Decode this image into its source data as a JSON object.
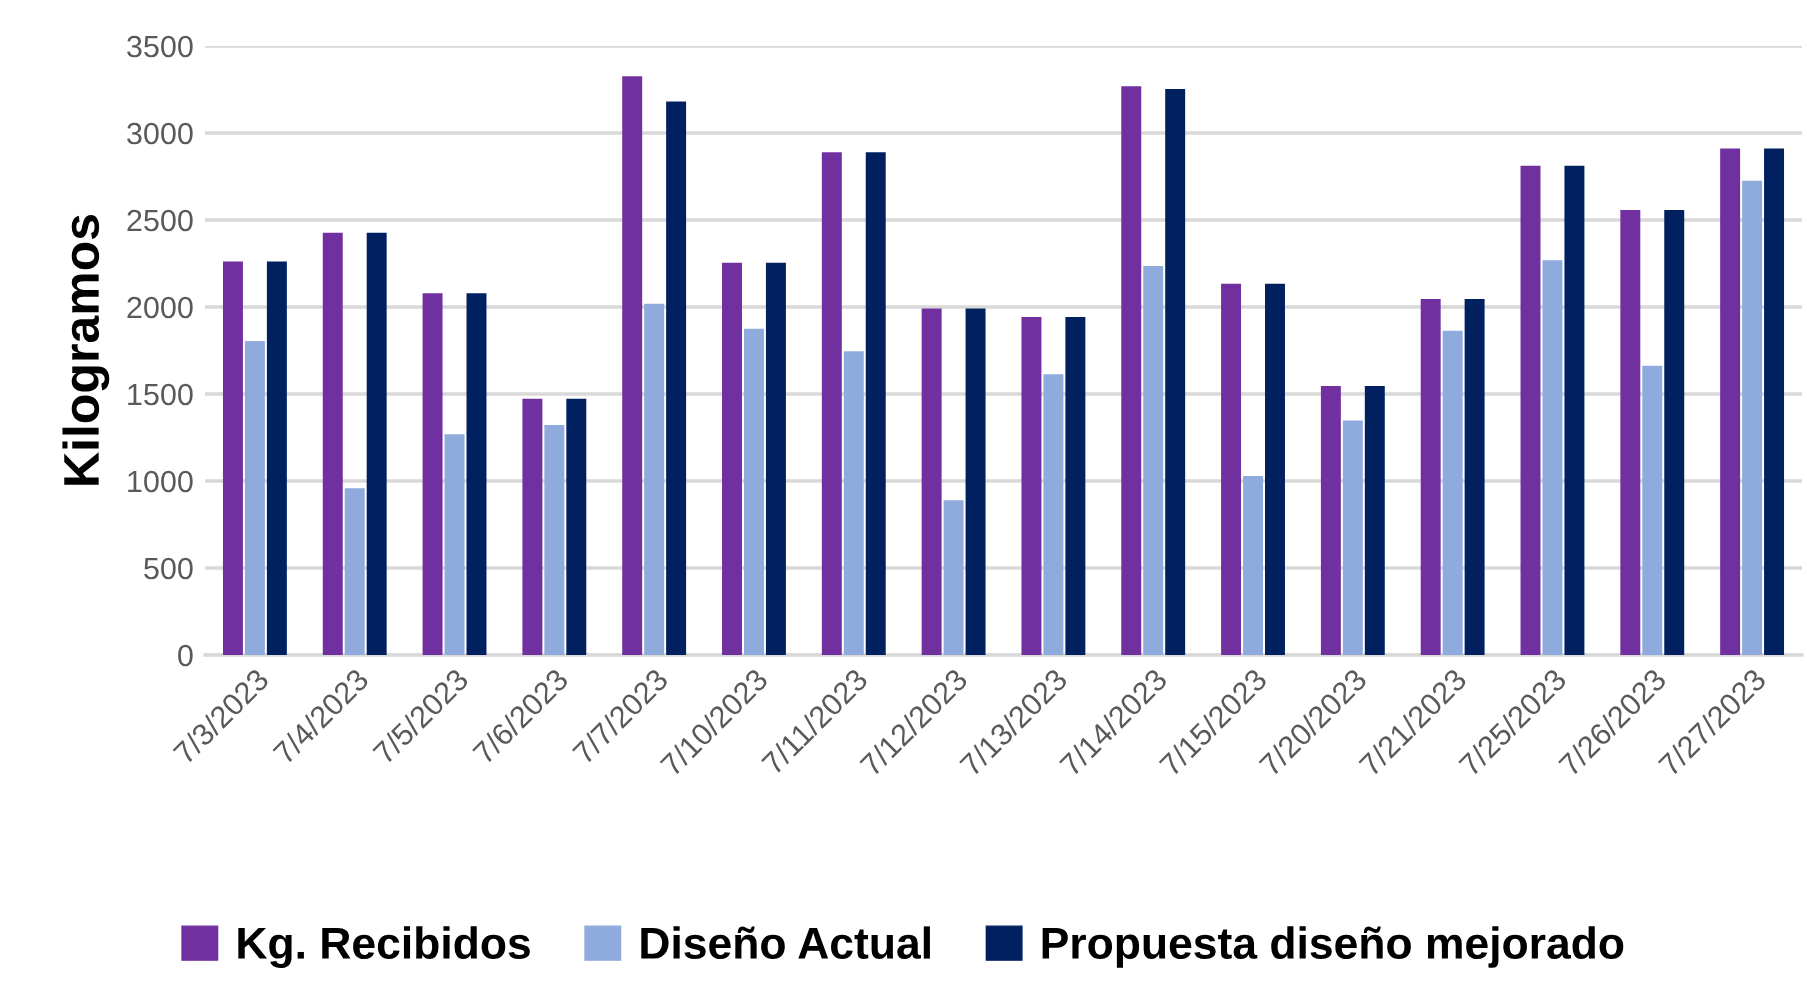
{
  "chart_data": {
    "type": "bar",
    "ylabel": "Kilogramos",
    "categories": [
      "7/3/2023",
      "7/4/2023",
      "7/5/2023",
      "7/6/2023",
      "7/7/2023",
      "7/10/2023",
      "7/11/2023",
      "7/12/2023",
      "7/13/2023",
      "7/14/2023",
      "7/15/2023",
      "7/20/2023",
      "7/21/2023",
      "7/25/2023",
      "7/26/2023",
      "7/27/2023"
    ],
    "series": [
      {
        "name": "Kg. Recibidos",
        "color": "#7030a0",
        "values": [
          2262,
          2427,
          2079,
          1473,
          3326,
          2255,
          2889,
          1992,
          1943,
          3268,
          2133,
          1546,
          2046,
          2812,
          2558,
          2911
        ]
      },
      {
        "name": "Diseño Actual",
        "color": "#8faadc",
        "values": [
          1804,
          958,
          1268,
          1322,
          2018,
          1875,
          1745,
          890,
          1614,
          2236,
          1029,
          1348,
          1863,
          2269,
          1663,
          2725
        ]
      },
      {
        "name": "Propuesta diseño mejorado",
        "color": "#002060",
        "values": [
          2262,
          2427,
          2079,
          1473,
          3181,
          2255,
          2889,
          1992,
          1943,
          3253,
          2133,
          1546,
          2046,
          2812,
          2558,
          2911
        ]
      }
    ],
    "ylim": [
      0,
      3500
    ],
    "yticks": [
      0,
      500,
      1000,
      1500,
      2000,
      2500,
      3000,
      3500
    ],
    "grid": "y",
    "legend": "bottom"
  }
}
